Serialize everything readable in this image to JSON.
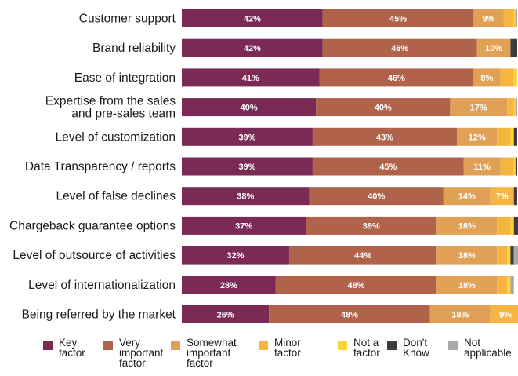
{
  "chart_data": {
    "type": "bar",
    "orientation": "horizontal",
    "stacked": true,
    "title": "",
    "xlabel": "",
    "ylabel": "",
    "xlim": [
      0,
      100
    ],
    "grid": false,
    "legend_position": "bottom",
    "categories": [
      "Customer support",
      "Brand reliability",
      "Ease of integration",
      "Expertise from the sales\nand pre-sales team",
      "Level of customization",
      "Data Transparency / reports",
      "Level of false declines",
      "Chargeback guarantee options",
      "Level of outsource of activities",
      "Level of internationalization",
      "Being referred by the market"
    ],
    "series": [
      {
        "name": "Key\nfactor",
        "color": "#7a2a55",
        "values": [
          42,
          42,
          41,
          40,
          39,
          39,
          38,
          37,
          32,
          28,
          26
        ]
      },
      {
        "name": "Very\nimportant\nfactor",
        "color": "#b0624a",
        "values": [
          45,
          46,
          46,
          40,
          43,
          45,
          40,
          39,
          44,
          48,
          48
        ]
      },
      {
        "name": "Somewhat\nimportant\nfactor",
        "color": "#e0a055",
        "values": [
          9,
          10,
          8,
          17,
          12,
          11,
          14,
          18,
          18,
          18,
          18
        ]
      },
      {
        "name": "Minor\nfactor",
        "color": "#f5b540",
        "values": [
          3,
          0,
          4,
          2,
          4,
          4,
          7,
          4,
          3,
          3,
          9
        ]
      },
      {
        "name": "Not a\nfactor",
        "color": "#fbd23a",
        "values": [
          0.5,
          0,
          1,
          0.5,
          1,
          0.5,
          0,
          1,
          1,
          1,
          1
        ]
      },
      {
        "name": "Don't\nKnow",
        "color": "#3d3d3d",
        "values": [
          0,
          2,
          0,
          0,
          1,
          0.5,
          1,
          2,
          1,
          0,
          1
        ]
      },
      {
        "name": "Not\napplicable",
        "color": "#a8a8a8",
        "values": [
          0.5,
          0,
          0,
          0.5,
          0,
          0,
          0,
          0,
          2,
          1,
          1
        ]
      }
    ],
    "data_labels": [
      [
        "42%",
        "45%",
        "9%",
        "",
        "",
        "",
        ""
      ],
      [
        "42%",
        "46%",
        "10%",
        "",
        "",
        "",
        ""
      ],
      [
        "41%",
        "46%",
        "8%",
        "",
        "",
        "",
        ""
      ],
      [
        "40%",
        "40%",
        "17%",
        "",
        "",
        "",
        ""
      ],
      [
        "39%",
        "43%",
        "12%",
        "",
        "",
        "",
        ""
      ],
      [
        "39%",
        "45%",
        "11%",
        "",
        "",
        "",
        ""
      ],
      [
        "38%",
        "40%",
        "14%",
        "7%",
        "",
        "",
        ""
      ],
      [
        "37%",
        "39%",
        "18%",
        "",
        "",
        "",
        ""
      ],
      [
        "32%",
        "44%",
        "18%",
        "",
        "",
        "",
        ""
      ],
      [
        "28%",
        "48%",
        "18%",
        "",
        "",
        "",
        ""
      ],
      [
        "26%",
        "48%",
        "18%",
        "9%",
        "",
        "",
        ""
      ]
    ]
  }
}
